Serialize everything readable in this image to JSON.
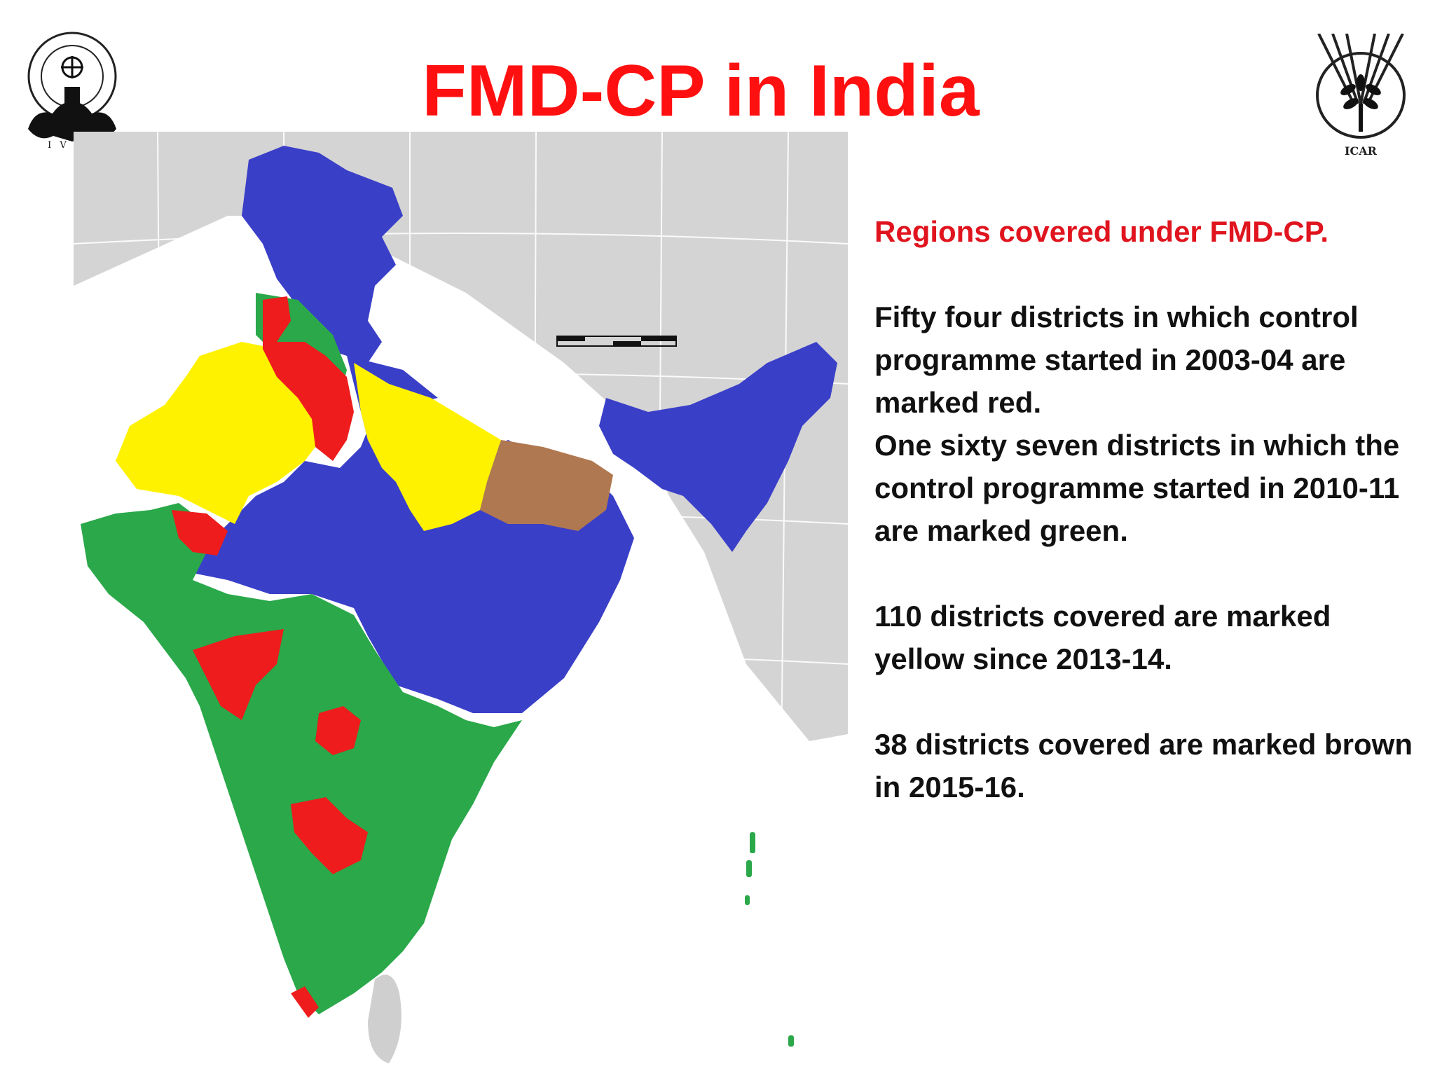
{
  "title": "FMD-CP in India",
  "colors": {
    "title": "#ff1010",
    "heading": "#e0141e",
    "red": "#ee1c1c",
    "green": "#2aa84a",
    "yellow": "#fff200",
    "blue": "#3a3fc8",
    "brown": "#b07850",
    "land_unshaded": "#d4d4d4",
    "ocean": "#ffffff"
  },
  "logos": {
    "left": {
      "icon": "ivri-emblem-icon",
      "caption": "I V R I"
    },
    "right": {
      "icon": "icar-wheat-emblem-icon",
      "caption": "ICAR"
    }
  },
  "map": {
    "legend": [
      {
        "color": "red",
        "text": "Fifty four districts in which control programme started in 2003-04 are marked red."
      },
      {
        "color": "green",
        "text": "One sixty seven districts in which the control programme started in 2010-11 are marked green."
      },
      {
        "color": "yellow",
        "text": "110 districts covered are marked yellow since 2013-14."
      },
      {
        "color": "brown",
        "text": "38 districts covered are marked brown in 2015-16."
      }
    ],
    "unshaded_region_color": "blue"
  },
  "text_panel": {
    "heading": "Regions covered under FMD-CP.",
    "p1": "Fifty four districts in which control programme started in 2003-04 are marked red.",
    "p2": "One sixty seven districts in which the control programme started in 2010-11 are marked green.",
    "p3": "110 districts covered are marked yellow since 2013-14.",
    "p4": "38 districts covered are marked brown in 2015-16."
  }
}
